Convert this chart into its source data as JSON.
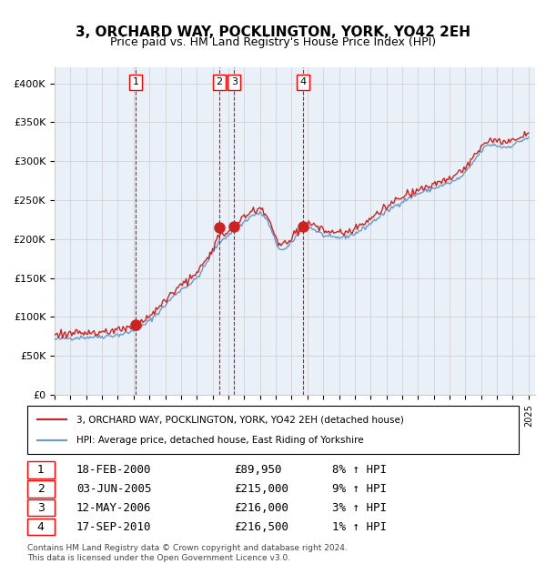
{
  "title": "3, ORCHARD WAY, POCKLINGTON, YORK, YO42 2EH",
  "subtitle": "Price paid vs. HM Land Registry's House Price Index (HPI)",
  "xlabel": "",
  "ylabel": "",
  "ylim": [
    0,
    420000
  ],
  "yticks": [
    0,
    50000,
    100000,
    150000,
    200000,
    250000,
    300000,
    350000,
    400000
  ],
  "ytick_labels": [
    "£0",
    "£50K",
    "£100K",
    "£150K",
    "£200K",
    "£250K",
    "£300K",
    "£350K",
    "£400K"
  ],
  "x_start_year": 1995,
  "x_end_year": 2025,
  "hpi_line_color": "#6699cc",
  "price_line_color": "#cc2222",
  "sale_marker_color": "#cc2222",
  "sale_dates": [
    "2000-02-18",
    "2005-06-03",
    "2006-05-12",
    "2010-09-17"
  ],
  "sale_prices": [
    89950,
    215000,
    216000,
    216500
  ],
  "sale_labels": [
    "1",
    "2",
    "3",
    "4"
  ],
  "sale_hpi_pct": [
    "8% ↑ HPI",
    "9% ↑ HPI",
    "3% ↑ HPI",
    "1% ↑ HPI"
  ],
  "table_dates": [
    "18-FEB-2000",
    "03-JUN-2005",
    "12-MAY-2006",
    "17-SEP-2010"
  ],
  "table_prices": [
    "£89,950",
    "£215,000",
    "£216,000",
    "£216,500"
  ],
  "legend_line1": "3, ORCHARD WAY, POCKLINGTON, YORK, YO42 2EH (detached house)",
  "legend_line2": "HPI: Average price, detached house, East Riding of Yorkshire",
  "footnote": "Contains HM Land Registry data © Crown copyright and database right 2024.\nThis data is licensed under the Open Government Licence v3.0.",
  "bg_color": "#eaf0f8",
  "grid_color": "#cccccc",
  "shade_start": "2000-02-18",
  "shade_end": "2010-09-17"
}
